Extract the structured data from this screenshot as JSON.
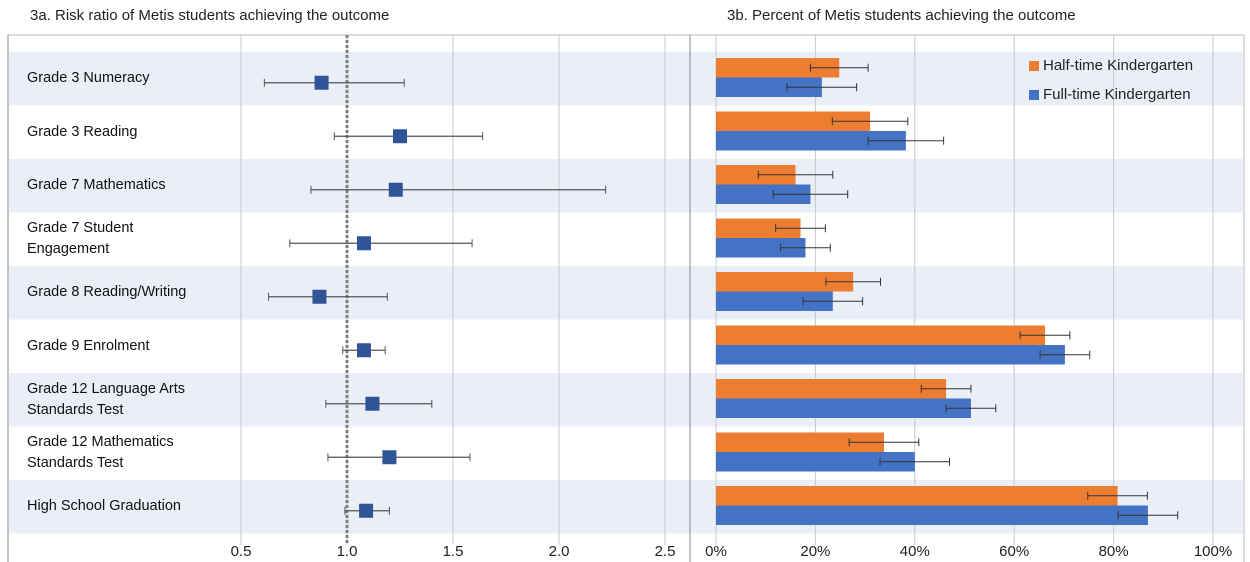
{
  "chart_data": [
    {
      "type": "forest",
      "title": "3a. Risk ratio of Metis students achieving the outcome",
      "categories": [
        "Grade 3 Numeracy",
        "Grade 3 Reading",
        "Grade 7 Mathematics",
        "Grade 7 Student Engagement",
        "Grade 8 Reading/Writing",
        "Grade 9 Enrolment",
        "Grade 12 Language Arts Standards Test",
        "Grade 12 Mathematics Standards Test",
        "High School Graduation"
      ],
      "values": [
        0.88,
        1.25,
        1.23,
        1.08,
        0.87,
        1.08,
        1.12,
        1.2,
        1.09
      ],
      "lower": [
        0.61,
        0.94,
        0.83,
        0.73,
        0.63,
        0.98,
        0.9,
        0.91,
        0.99
      ],
      "upper": [
        1.27,
        1.64,
        2.22,
        1.59,
        1.19,
        1.18,
        1.4,
        1.58,
        1.2
      ],
      "color": "#2f5597",
      "reference": 1,
      "xlim": [
        0.5,
        2.5
      ],
      "xticks": [
        0.5,
        {
          "value": 1,
          "label": "1.0"
        },
        1.5,
        {
          "value": 2,
          "label": "2.0"
        },
        2.5
      ],
      "grid": true
    },
    {
      "type": "bar",
      "title": "3b. Percent of Metis students achieving the outcome",
      "series": [
        {
          "name": "Half-time Kindergarten",
          "color": "#ed7d31",
          "values": [
            24.8,
            31,
            16,
            17,
            27.6,
            66.2,
            46.3,
            33.8,
            80.8
          ],
          "errors": [
            5.8,
            7.6,
            7.5,
            5,
            5.5,
            5,
            5,
            7,
            6
          ]
        },
        {
          "name": "Full-time Kindergarten",
          "color": "#4472c4",
          "values": [
            21.3,
            38.2,
            19,
            18,
            23.5,
            70.2,
            51.3,
            40,
            86.9
          ],
          "errors": [
            7,
            7.6,
            7.5,
            5,
            6,
            5,
            5,
            7,
            6
          ]
        }
      ],
      "xlim": [
        0,
        100
      ],
      "xticks": [
        {
          "value": 0,
          "label": "0%"
        },
        {
          "value": 20,
          "label": "20%"
        },
        {
          "value": 40,
          "label": "40%"
        },
        {
          "value": 60,
          "label": "60%"
        },
        {
          "value": 80,
          "label": "80%"
        },
        {
          "value": 100,
          "label": "100%"
        }
      ],
      "grid": true,
      "legend": "top-right"
    }
  ]
}
